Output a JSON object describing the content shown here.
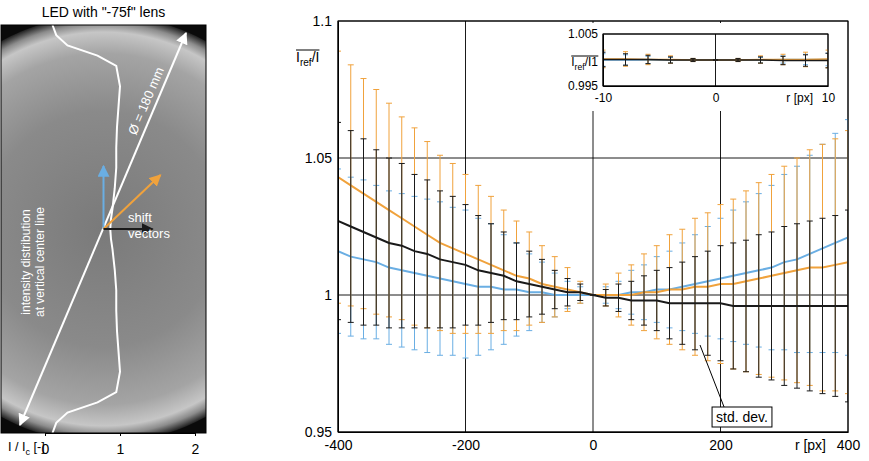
{
  "chart_data": [
    {
      "type": "line",
      "title": "LED with \"-75f\" lens",
      "orientation": "horizontal",
      "x": [
        1,
        0.95,
        0.9,
        0.85,
        0.8,
        0.7,
        0.6,
        0.5,
        0.4,
        0.3,
        0.2,
        0.1,
        0.05,
        0,
        -0.05,
        -0.1,
        -0.2,
        -0.3,
        -0.4,
        -0.5,
        -0.6,
        -0.7,
        -0.8,
        -0.85,
        -0.9,
        -0.95,
        -1
      ],
      "xlim": [
        -1,
        1
      ],
      "series": [
        {
          "color": "#ffffff",
          "values": [
            0.1,
            0.15,
            0.3,
            0.7,
            0.95,
            1.0,
            0.98,
            0.96,
            0.95,
            0.95,
            0.93,
            0.9,
            0.88,
            0.87,
            0.88,
            0.9,
            0.93,
            0.95,
            0.95,
            0.96,
            0.98,
            1.0,
            0.95,
            0.7,
            0.3,
            0.15,
            0.1
          ]
        }
      ],
      "ylim": [
        0,
        2
      ],
      "yticks": [
        0,
        1,
        2
      ],
      "y_label": [
        "I / I",
        "c",
        " [-]"
      ],
      "tick_labels": "y",
      "annotations": [
        "intensity distribution at vertical center line",
        "Ø = 180 mm",
        "shift vectors"
      ]
    },
    {
      "type": "line",
      "x": [
        -400,
        -380,
        -360,
        -340,
        -320,
        -300,
        -280,
        -260,
        -240,
        -220,
        -200,
        -180,
        -160,
        -140,
        -120,
        -100,
        -80,
        -60,
        -40,
        -20,
        0,
        20,
        40,
        60,
        80,
        100,
        120,
        140,
        160,
        180,
        200,
        220,
        240,
        260,
        280,
        300,
        320,
        340,
        360,
        380,
        400
      ],
      "xlim": [
        -400,
        400
      ],
      "xticks": [
        -400,
        -200,
        0,
        200,
        400
      ],
      "ylim": [
        0.95,
        1.1
      ],
      "yticks": [
        0.95,
        1,
        1.05,
        1.1
      ],
      "grid": true,
      "x_label": "r [px]",
      "y_label": [
        "I",
        "ref",
        "/I"
      ],
      "series": [
        {
          "color": "#6aaee3",
          "values": [
            1.016,
            1.014,
            1.013,
            1.012,
            1.01,
            1.009,
            1.008,
            1.007,
            1.006,
            1.005,
            1.004,
            1.003,
            1.003,
            1.002,
            1.002,
            1.001,
            1.001,
            1,
            1,
            1,
            1,
            1,
            1,
            1.001,
            1.001,
            1.002,
            1.002,
            1.003,
            1.004,
            1.005,
            1.006,
            1.007,
            1.008,
            1.009,
            1.01,
            1.012,
            1.013,
            1.015,
            1.017,
            1.019,
            1.021
          ],
          "errors": [
            0.03,
            0.029,
            0.029,
            0.028,
            0.028,
            0.028,
            0.028,
            0.028,
            0.028,
            0.027,
            0.027,
            0.025,
            0.023,
            0.02,
            0.017,
            0.014,
            0.011,
            0.008,
            0.005,
            0.003,
            0,
            0.003,
            0.005,
            0.008,
            0.01,
            0.012,
            0.014,
            0.016,
            0.018,
            0.02,
            0.022,
            0.024,
            0.026,
            0.028,
            0.03,
            0.032,
            0.034,
            0.036,
            0.038,
            0.04,
            0.043
          ]
        },
        {
          "color": "#f0a23c",
          "values": [
            1.043,
            1.04,
            1.037,
            1.034,
            1.031,
            1.028,
            1.025,
            1.022,
            1.019,
            1.017,
            1.015,
            1.013,
            1.011,
            1.009,
            1.007,
            1.006,
            1.004,
            1.003,
            1.002,
            1.001,
            1,
            1,
            1,
            1,
            1.001,
            1.001,
            1.002,
            1.002,
            1.003,
            1.003,
            1.004,
            1.004,
            1.005,
            1.006,
            1.007,
            1.008,
            1.009,
            1.01,
            1.01,
            1.011,
            1.012
          ],
          "errors": [
            0.046,
            0.044,
            0.042,
            0.041,
            0.039,
            0.037,
            0.036,
            0.034,
            0.032,
            0.031,
            0.029,
            0.027,
            0.025,
            0.022,
            0.02,
            0.017,
            0.014,
            0.011,
            0.008,
            0.004,
            0,
            0.004,
            0.008,
            0.011,
            0.014,
            0.017,
            0.02,
            0.022,
            0.025,
            0.027,
            0.029,
            0.031,
            0.033,
            0.035,
            0.037,
            0.039,
            0.041,
            0.043,
            0.045,
            0.046,
            0.048
          ]
        },
        {
          "color": "#1a1a1a",
          "values": [
            1.027,
            1.025,
            1.023,
            1.021,
            1.019,
            1.018,
            1.016,
            1.015,
            1.013,
            1.012,
            1.011,
            1.009,
            1.008,
            1.007,
            1.005,
            1.004,
            1.003,
            1.002,
            1.001,
            1.001,
            1,
            0.999,
            0.999,
            0.998,
            0.998,
            0.998,
            0.997,
            0.997,
            0.997,
            0.997,
            0.997,
            0.996,
            0.996,
            0.996,
            0.996,
            0.996,
            0.996,
            0.996,
            0.996,
            0.996,
            0.996
          ],
          "errors": [
            0.036,
            0.035,
            0.034,
            0.032,
            0.031,
            0.03,
            0.028,
            0.027,
            0.025,
            0.024,
            0.022,
            0.02,
            0.018,
            0.016,
            0.014,
            0.012,
            0.01,
            0.007,
            0.005,
            0.003,
            0,
            0.003,
            0.005,
            0.007,
            0.009,
            0.011,
            0.013,
            0.015,
            0.017,
            0.019,
            0.021,
            0.023,
            0.024,
            0.026,
            0.027,
            0.029,
            0.03,
            0.031,
            0.032,
            0.033,
            0.035
          ]
        }
      ],
      "annotations": [
        "std. dev."
      ]
    },
    {
      "type": "line",
      "x": [
        -10,
        -8,
        -6,
        -4,
        -2,
        0,
        2,
        4,
        6,
        8,
        10
      ],
      "xlim": [
        -10,
        10
      ],
      "xticks": [
        -10,
        0,
        10
      ],
      "ylim": [
        0.995,
        1.005
      ],
      "yticks": [
        0.995,
        1.005
      ],
      "grid": true,
      "x_label": "r [px]",
      "y_label": [
        "I",
        "ref",
        "/I1"
      ],
      "series": [
        {
          "color": "#6aaee3",
          "values": [
            1,
            1,
            1,
            1,
            1,
            1,
            1,
            1,
            1.0001,
            1.0001,
            1.0001
          ],
          "errors": [
            0.0012,
            0.001,
            0.0007,
            0.0005,
            0.0002,
            0,
            0.0002,
            0.0005,
            0.0007,
            0.001,
            0.0012
          ]
        },
        {
          "color": "#f0a23c",
          "values": [
            1.0002,
            1.0002,
            1.0001,
            1.0001,
            1,
            1,
            1,
            1.0001,
            1.0001,
            1.0001,
            1.0002
          ],
          "errors": [
            0.0017,
            0.0014,
            0.001,
            0.0007,
            0.0003,
            0,
            0.0003,
            0.0007,
            0.001,
            0.0014,
            0.0017
          ]
        },
        {
          "color": "#1a1a1a",
          "values": [
            1.0001,
            1.0001,
            1.0001,
            1,
            1,
            1,
            1,
            1,
            0.9999,
            0.9999,
            0.9999
          ],
          "errors": [
            0.0014,
            0.0011,
            0.0008,
            0.0006,
            0.0003,
            0,
            0.0003,
            0.0006,
            0.0008,
            0.0011,
            0.0014
          ]
        }
      ]
    }
  ]
}
